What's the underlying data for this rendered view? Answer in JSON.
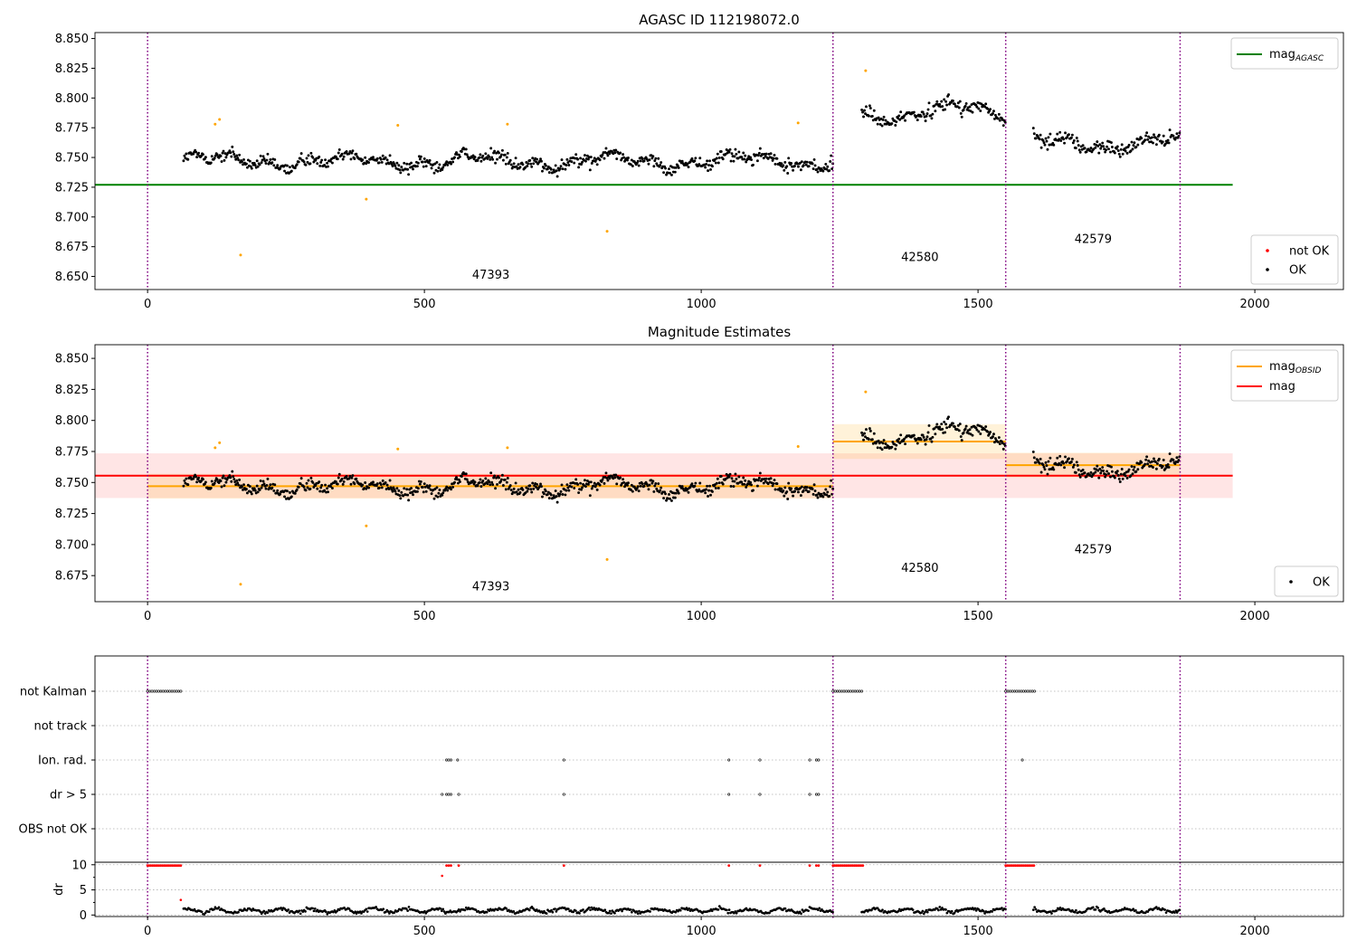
{
  "chart_data": [
    {
      "type": "scatter",
      "title": "AGASC ID 112198072.0",
      "xlim": [
        -95,
        2160
      ],
      "ylim": [
        8.639,
        8.855
      ],
      "x_ticks": [
        "0",
        "500",
        "1000",
        "1500",
        "2000"
      ],
      "y_ticks": [
        "8.650",
        "8.675",
        "8.700",
        "8.725",
        "8.750",
        "8.775",
        "8.800",
        "8.825",
        "8.850"
      ],
      "grid": false,
      "obs_boundaries": [
        0,
        1238,
        1550,
        1865
      ],
      "obs_labels": [
        {
          "text": "47393",
          "x": 620,
          "y": 8.648
        },
        {
          "text": "42580",
          "x": 1395,
          "y": 8.663
        },
        {
          "text": "42579",
          "x": 1708,
          "y": 8.678
        }
      ],
      "segments": [
        {
          "x0": 65,
          "x1": 1238,
          "base": 8.747,
          "drift": 0.0045
        },
        {
          "x0": 1290,
          "x1": 1550,
          "base": 8.788,
          "drift": 0.007
        },
        {
          "x0": 1600,
          "x1": 1865,
          "base": 8.762,
          "drift": 0.005
        }
      ],
      "lines": [
        {
          "name": "mag",
          "sub": "AGASC",
          "color": "#008000",
          "x": [
            -95,
            1960
          ],
          "y": 8.727
        }
      ],
      "outliers": [
        {
          "x": 122,
          "y": 8.778
        },
        {
          "x": 130,
          "y": 8.782
        },
        {
          "x": 168,
          "y": 8.668
        },
        {
          "x": 395,
          "y": 8.715
        },
        {
          "x": 452,
          "y": 8.777
        },
        {
          "x": 650,
          "y": 8.778
        },
        {
          "x": 830,
          "y": 8.688
        },
        {
          "x": 1175,
          "y": 8.779
        },
        {
          "x": 1297,
          "y": 8.823
        }
      ],
      "legend_lines": [
        {
          "name": "mag",
          "sub": "AGASC",
          "color": "#008000"
        }
      ],
      "legend_markers": [
        {
          "name": "not OK",
          "color": "#ff0000"
        },
        {
          "name": "OK",
          "color": "#000000"
        }
      ],
      "legend_positions": [
        "top-right",
        "bottom-right"
      ]
    },
    {
      "type": "scatter",
      "title": "Magnitude Estimates",
      "xlim": [
        -95,
        2160
      ],
      "ylim": [
        8.654,
        8.861
      ],
      "x_ticks": [
        "0",
        "500",
        "1000",
        "1500",
        "2000"
      ],
      "y_ticks": [
        "8.675",
        "8.700",
        "8.725",
        "8.750",
        "8.775",
        "8.800",
        "8.825",
        "8.850"
      ],
      "grid": false,
      "obs_boundaries": [
        0,
        1238,
        1550,
        1865
      ],
      "obs_labels": [
        {
          "text": "47393",
          "x": 620,
          "y": 8.663
        },
        {
          "text": "42580",
          "x": 1395,
          "y": 8.678
        },
        {
          "text": "42579",
          "x": 1708,
          "y": 8.693
        }
      ],
      "segments": [
        {
          "x0": 65,
          "x1": 1238,
          "base": 8.747,
          "drift": 0.0045
        },
        {
          "x0": 1290,
          "x1": 1550,
          "base": 8.788,
          "drift": 0.007
        },
        {
          "x0": 1600,
          "x1": 1865,
          "base": 8.762,
          "drift": 0.005
        }
      ],
      "outliers": [
        {
          "x": 122,
          "y": 8.778
        },
        {
          "x": 130,
          "y": 8.782
        },
        {
          "x": 168,
          "y": 8.668
        },
        {
          "x": 395,
          "y": 8.715
        },
        {
          "x": 452,
          "y": 8.777
        },
        {
          "x": 650,
          "y": 8.778
        },
        {
          "x": 830,
          "y": 8.688
        },
        {
          "x": 1175,
          "y": 8.779
        },
        {
          "x": 1297,
          "y": 8.823
        }
      ],
      "bands": [
        {
          "x": [
            -95,
            1960
          ],
          "y": [
            8.7375,
            8.7735
          ],
          "color": "#ff0000",
          "opacity": 0.1
        },
        {
          "x": [
            0,
            1238
          ],
          "y": [
            8.737,
            8.757
          ],
          "color": "#ffa500",
          "opacity": 0.15
        },
        {
          "x": [
            1238,
            1550
          ],
          "y": [
            8.769,
            8.797
          ],
          "color": "#ffa500",
          "opacity": 0.15
        },
        {
          "x": [
            1550,
            1865
          ],
          "y": [
            8.754,
            8.774
          ],
          "color": "#ffa500",
          "opacity": 0.15
        }
      ],
      "lines": [
        {
          "name": "mag",
          "color": "#ff0000",
          "x": [
            -95,
            1960
          ],
          "y": 8.7555
        },
        {
          "name": "mag",
          "sub": "OBSID",
          "color": "#ffa500",
          "x": [
            0,
            1238
          ],
          "y": 8.747
        },
        {
          "color": "#ffa500",
          "x": [
            1238,
            1550
          ],
          "y": 8.783
        },
        {
          "color": "#ffa500",
          "x": [
            1550,
            1865
          ],
          "y": 8.764
        }
      ],
      "legend_lines": [
        {
          "name": "mag",
          "sub": "OBSID",
          "color": "#ffa500"
        },
        {
          "name": "mag",
          "color": "#ff0000"
        }
      ],
      "legend_markers": [
        {
          "name": "OK",
          "color": "#000000"
        }
      ],
      "legend_positions": [
        "top-right",
        "bottom-right"
      ]
    },
    {
      "type": "scatter",
      "xlim": [
        -95,
        2160
      ],
      "x_ticks": [
        "0",
        "500",
        "1000",
        "1500",
        "2000"
      ],
      "flag_rows": [
        "not Kalman",
        "not track",
        "Ion. rad.",
        "dr > 5",
        "OBS not OK"
      ],
      "obs_boundaries": [
        0,
        1238,
        1550,
        1865
      ],
      "flags": {
        "not Kalman": [
          [
            0,
            60
          ],
          [
            1238,
            1292
          ],
          [
            1550,
            1602
          ]
        ],
        "Ion. rad.": [
          540,
          544,
          548,
          560,
          752,
          1050,
          1106,
          1196,
          1208,
          1212,
          1580
        ],
        "dr > 5": [
          532,
          540,
          544,
          548,
          562,
          752,
          1050,
          1106,
          1196,
          1208,
          1212
        ]
      },
      "dr": {
        "ylabel": "dr",
        "y_ticks": [
          "0",
          "5",
          "10"
        ],
        "ylim": [
          -0.3,
          10.5
        ],
        "high_ranges": [
          [
            0,
            60
          ],
          [
            1238,
            1292
          ],
          [
            1550,
            1602
          ]
        ],
        "high_points": [
          540,
          544,
          548,
          562,
          752,
          1050,
          1106,
          1196,
          1208,
          1212
        ],
        "extra_points": [
          {
            "x": 532,
            "y": 7.8
          },
          {
            "x": 60,
            "y": 3.0
          }
        ],
        "low_segments": [
          [
            65,
            1238
          ],
          [
            1290,
            1550
          ],
          [
            1600,
            1865
          ]
        ]
      }
    }
  ]
}
